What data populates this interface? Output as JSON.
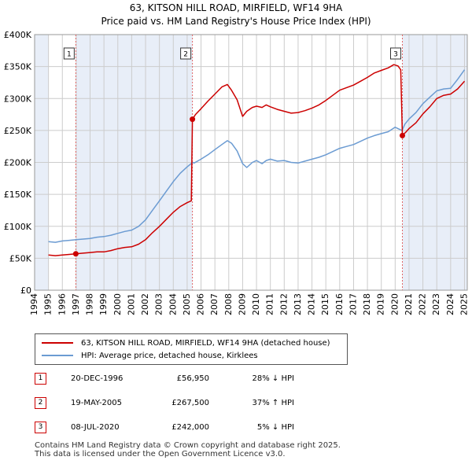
{
  "header": {
    "title": "63, KITSON HILL ROAD, MIRFIELD, WF14 9HA",
    "subtitle": "Price paid vs. HM Land Registry's House Price Index (HPI)"
  },
  "colors": {
    "property": "#cc0000",
    "hpi": "#6b9bd2",
    "shade": "#e8eef8",
    "grid": "#cccccc",
    "marker_line": "#e06666"
  },
  "chart_data": {
    "type": "line",
    "title": "Price paid vs. HM Land Registry's House Price Index (HPI)",
    "xlabel": "",
    "ylabel": "",
    "xlim": [
      1994,
      2025.2
    ],
    "ylim": [
      0,
      400000
    ],
    "y_ticks": [
      0,
      50000,
      100000,
      150000,
      200000,
      250000,
      300000,
      350000,
      400000
    ],
    "y_tick_labels": [
      "£0",
      "£50K",
      "£100K",
      "£150K",
      "£200K",
      "£250K",
      "£300K",
      "£350K",
      "£400K"
    ],
    "x_ticks": [
      1994,
      1995,
      1996,
      1997,
      1998,
      1999,
      2000,
      2001,
      2002,
      2003,
      2004,
      2005,
      2006,
      2007,
      2008,
      2009,
      2010,
      2011,
      2012,
      2013,
      2014,
      2015,
      2016,
      2017,
      2018,
      2019,
      2020,
      2021,
      2022,
      2023,
      2024,
      2025
    ],
    "x_tick_labels": [
      "1994",
      "1995",
      "1996",
      "1997",
      "1998",
      "1999",
      "2000",
      "2001",
      "2002",
      "2003",
      "2004",
      "2005",
      "2006",
      "2007",
      "2008",
      "2009",
      "2010",
      "2011",
      "2012",
      "2013",
      "2014",
      "2015",
      "2016",
      "2017",
      "2018",
      "2019",
      "2020",
      "2021",
      "2022",
      "2023",
      "2024",
      "2025"
    ],
    "grid": true,
    "shaded_ranges": [
      [
        1994,
        1995.0
      ],
      [
        1996.97,
        2005.38
      ],
      [
        2020.52,
        2025.2
      ]
    ],
    "series": [
      {
        "name": "HPI: Average price, detached house, Kirklees",
        "color": "#6b9bd2",
        "x": [
          1995.0,
          1995.5,
          1996.0,
          1996.5,
          1997.0,
          1997.5,
          1998.0,
          1998.5,
          1999.0,
          1999.5,
          2000.0,
          2000.5,
          2001.0,
          2001.5,
          2002.0,
          2002.5,
          2003.0,
          2003.5,
          2004.0,
          2004.5,
          2005.0,
          2005.4,
          2005.5,
          2006.0,
          2006.5,
          2007.0,
          2007.5,
          2007.9,
          2008.2,
          2008.6,
          2009.0,
          2009.3,
          2009.7,
          2010.0,
          2010.4,
          2010.7,
          2011.0,
          2011.5,
          2012.0,
          2012.5,
          2013.0,
          2013.5,
          2014.0,
          2014.5,
          2015.0,
          2015.5,
          2016.0,
          2016.5,
          2017.0,
          2017.5,
          2018.0,
          2018.5,
          2019.0,
          2019.5,
          2020.0,
          2020.3,
          2020.5,
          2020.7,
          2021.0,
          2021.5,
          2022.0,
          2022.5,
          2023.0,
          2023.5,
          2024.0,
          2024.5,
          2025.0
        ],
        "values": [
          76000,
          75000,
          77000,
          78000,
          79000,
          80000,
          81000,
          83000,
          84000,
          86000,
          89000,
          92000,
          94000,
          100000,
          110000,
          125000,
          140000,
          155000,
          170000,
          183000,
          193000,
          200000,
          199000,
          205000,
          212000,
          220000,
          228000,
          234000,
          230000,
          218000,
          198000,
          192000,
          200000,
          203000,
          198000,
          203000,
          205000,
          202000,
          203000,
          200000,
          199000,
          202000,
          205000,
          208000,
          212000,
          217000,
          222000,
          225000,
          228000,
          233000,
          238000,
          242000,
          245000,
          248000,
          255000,
          252000,
          250000,
          260000,
          268000,
          278000,
          292000,
          302000,
          312000,
          315000,
          316000,
          330000,
          345000
        ]
      },
      {
        "name": "63, KITSON HILL ROAD, MIRFIELD, WF14 9HA (detached house)",
        "color": "#cc0000",
        "x": [
          1995.0,
          1995.5,
          1996.0,
          1996.5,
          1996.97,
          1997.5,
          1998.0,
          1998.5,
          1999.0,
          1999.5,
          2000.0,
          2000.5,
          2001.0,
          2001.5,
          2002.0,
          2002.5,
          2003.0,
          2003.5,
          2004.0,
          2004.5,
          2005.0,
          2005.3,
          2005.38,
          2005.6,
          2006.0,
          2006.5,
          2007.0,
          2007.5,
          2007.9,
          2008.2,
          2008.6,
          2009.0,
          2009.3,
          2009.7,
          2010.0,
          2010.4,
          2010.7,
          2011.0,
          2011.5,
          2012.0,
          2012.5,
          2013.0,
          2013.5,
          2014.0,
          2014.5,
          2015.0,
          2015.5,
          2016.0,
          2016.5,
          2017.0,
          2017.5,
          2018.0,
          2018.5,
          2019.0,
          2019.5,
          2019.9,
          2020.2,
          2020.4,
          2020.52,
          2020.8,
          2021.0,
          2021.5,
          2022.0,
          2022.5,
          2023.0,
          2023.5,
          2024.0,
          2024.5,
          2025.0
        ],
        "values": [
          55000,
          54000,
          55000,
          56000,
          56950,
          58000,
          59000,
          60000,
          60000,
          62000,
          65000,
          67000,
          68000,
          72000,
          79000,
          90000,
          100000,
          111000,
          122000,
          131000,
          137000,
          140000,
          267500,
          275000,
          284000,
          296000,
          307000,
          318000,
          322000,
          313000,
          298000,
          272000,
          280000,
          286000,
          288000,
          286000,
          290000,
          287000,
          283000,
          280000,
          277000,
          278000,
          281000,
          285000,
          290000,
          297000,
          305000,
          313000,
          317000,
          321000,
          327000,
          333000,
          340000,
          344000,
          348000,
          353000,
          351000,
          345000,
          242000,
          248000,
          253000,
          262000,
          276000,
          287000,
          300000,
          305000,
          307000,
          315000,
          327000
        ]
      }
    ],
    "markers": [
      {
        "label": "1",
        "x": 1996.97,
        "value": 56950
      },
      {
        "label": "2",
        "x": 2005.38,
        "value": 267500
      },
      {
        "label": "3",
        "x": 2020.52,
        "value": 242000
      }
    ]
  },
  "legend": {
    "property_label": "63, KITSON HILL ROAD, MIRFIELD, WF14 9HA (detached house)",
    "hpi_label": "HPI: Average price, detached house, Kirklees"
  },
  "transactions": [
    {
      "num": "1",
      "date": "20-DEC-1996",
      "price": "£56,950",
      "hpi": "28% ↓ HPI"
    },
    {
      "num": "2",
      "date": "19-MAY-2005",
      "price": "£267,500",
      "hpi": "37% ↑ HPI"
    },
    {
      "num": "3",
      "date": "08-JUL-2020",
      "price": "£242,000",
      "hpi": "5% ↓ HPI"
    }
  ],
  "footer": {
    "line1": "Contains HM Land Registry data © Crown copyright and database right 2025.",
    "line2": "This data is licensed under the Open Government Licence v3.0."
  }
}
